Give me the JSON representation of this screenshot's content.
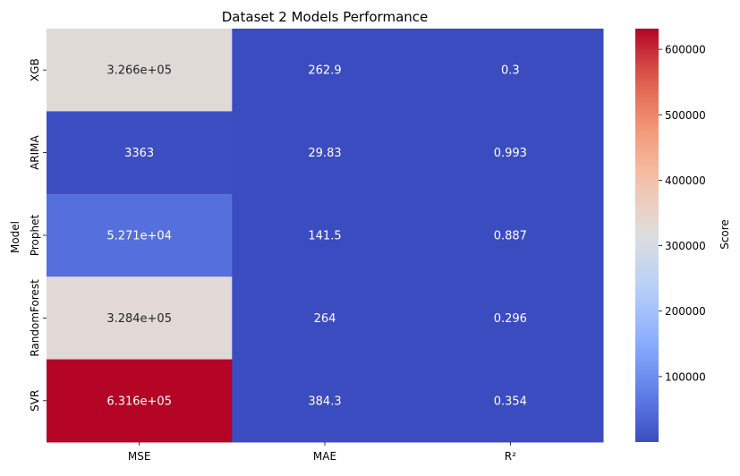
{
  "chart_data": {
    "type": "heatmap",
    "title": "Dataset 2 Models Performance",
    "xlabel": "",
    "ylabel": "Model",
    "columns": [
      "MSE",
      "MAE",
      "R²"
    ],
    "rows": [
      "XGB",
      "ARIMA",
      "Prophet",
      "RandomForest",
      "SVR"
    ],
    "values": [
      [
        326600,
        262.9,
        0.3
      ],
      [
        3363,
        29.83,
        0.993
      ],
      [
        52710,
        141.5,
        0.887
      ],
      [
        328400,
        264,
        0.296
      ],
      [
        631600,
        384.3,
        0.354
      ]
    ],
    "labels": [
      [
        "3.266e+05",
        "262.9",
        "0.3"
      ],
      [
        "3363",
        "29.83",
        "0.993"
      ],
      [
        "5.271e+04",
        "141.5",
        "0.887"
      ],
      [
        "3.284e+05",
        "264",
        "0.296"
      ],
      [
        "6.316e+05",
        "384.3",
        "0.354"
      ]
    ],
    "colorbar": {
      "label": "Score",
      "colormap": "coolwarm",
      "vmin": 0.296,
      "vmax": 631600,
      "ticks": [
        100000,
        200000,
        300000,
        400000,
        500000,
        600000
      ],
      "tick_labels": [
        "100000",
        "200000",
        "300000",
        "400000",
        "500000",
        "600000"
      ]
    },
    "grid": false,
    "legend": "colorbar-right"
  }
}
